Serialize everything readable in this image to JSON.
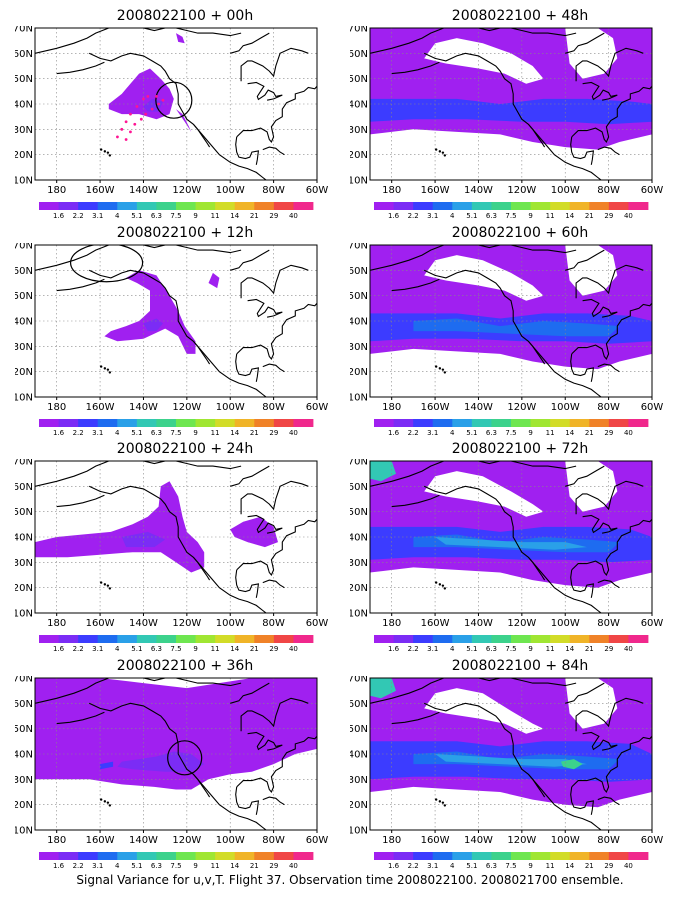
{
  "colorbar": {
    "labels": [
      "1.6",
      "2.2",
      "3.1",
      "4",
      "5.1",
      "6.3",
      "7.5",
      "9",
      "11",
      "14",
      "21",
      "29",
      "40"
    ],
    "colors": [
      "#a020f0",
      "#7b2cf5",
      "#3c3cff",
      "#1e6cf0",
      "#2aa0e8",
      "#32c8b4",
      "#3cd28c",
      "#6ee650",
      "#a0e632",
      "#d2dc28",
      "#f0b428",
      "#f08228",
      "#f04646",
      "#f0288c"
    ]
  },
  "axes": {
    "lat_labels": [
      "70N",
      "60N",
      "50N",
      "40N",
      "30N",
      "20N",
      "10N"
    ],
    "lon_labels": [
      "180",
      "160W",
      "140W",
      "120W",
      "100W",
      "80W",
      "60W"
    ]
  },
  "panels": [
    {
      "title": "2008022100 + 00h",
      "level": 0
    },
    {
      "title": "2008022100 + 12h",
      "level": 1
    },
    {
      "title": "2008022100 + 24h",
      "level": 2
    },
    {
      "title": "2008022100 + 36h",
      "level": 3
    },
    {
      "title": "2008022100 + 48h",
      "level": 4
    },
    {
      "title": "2008022100 + 60h",
      "level": 5
    },
    {
      "title": "2008022100 + 72h",
      "level": 6
    },
    {
      "title": "2008022100 + 84h",
      "level": 7
    }
  ],
  "footer": "Signal Variance for u,v,T. Flight 37. Observation time 2008022100. 2008021700 ensemble."
}
